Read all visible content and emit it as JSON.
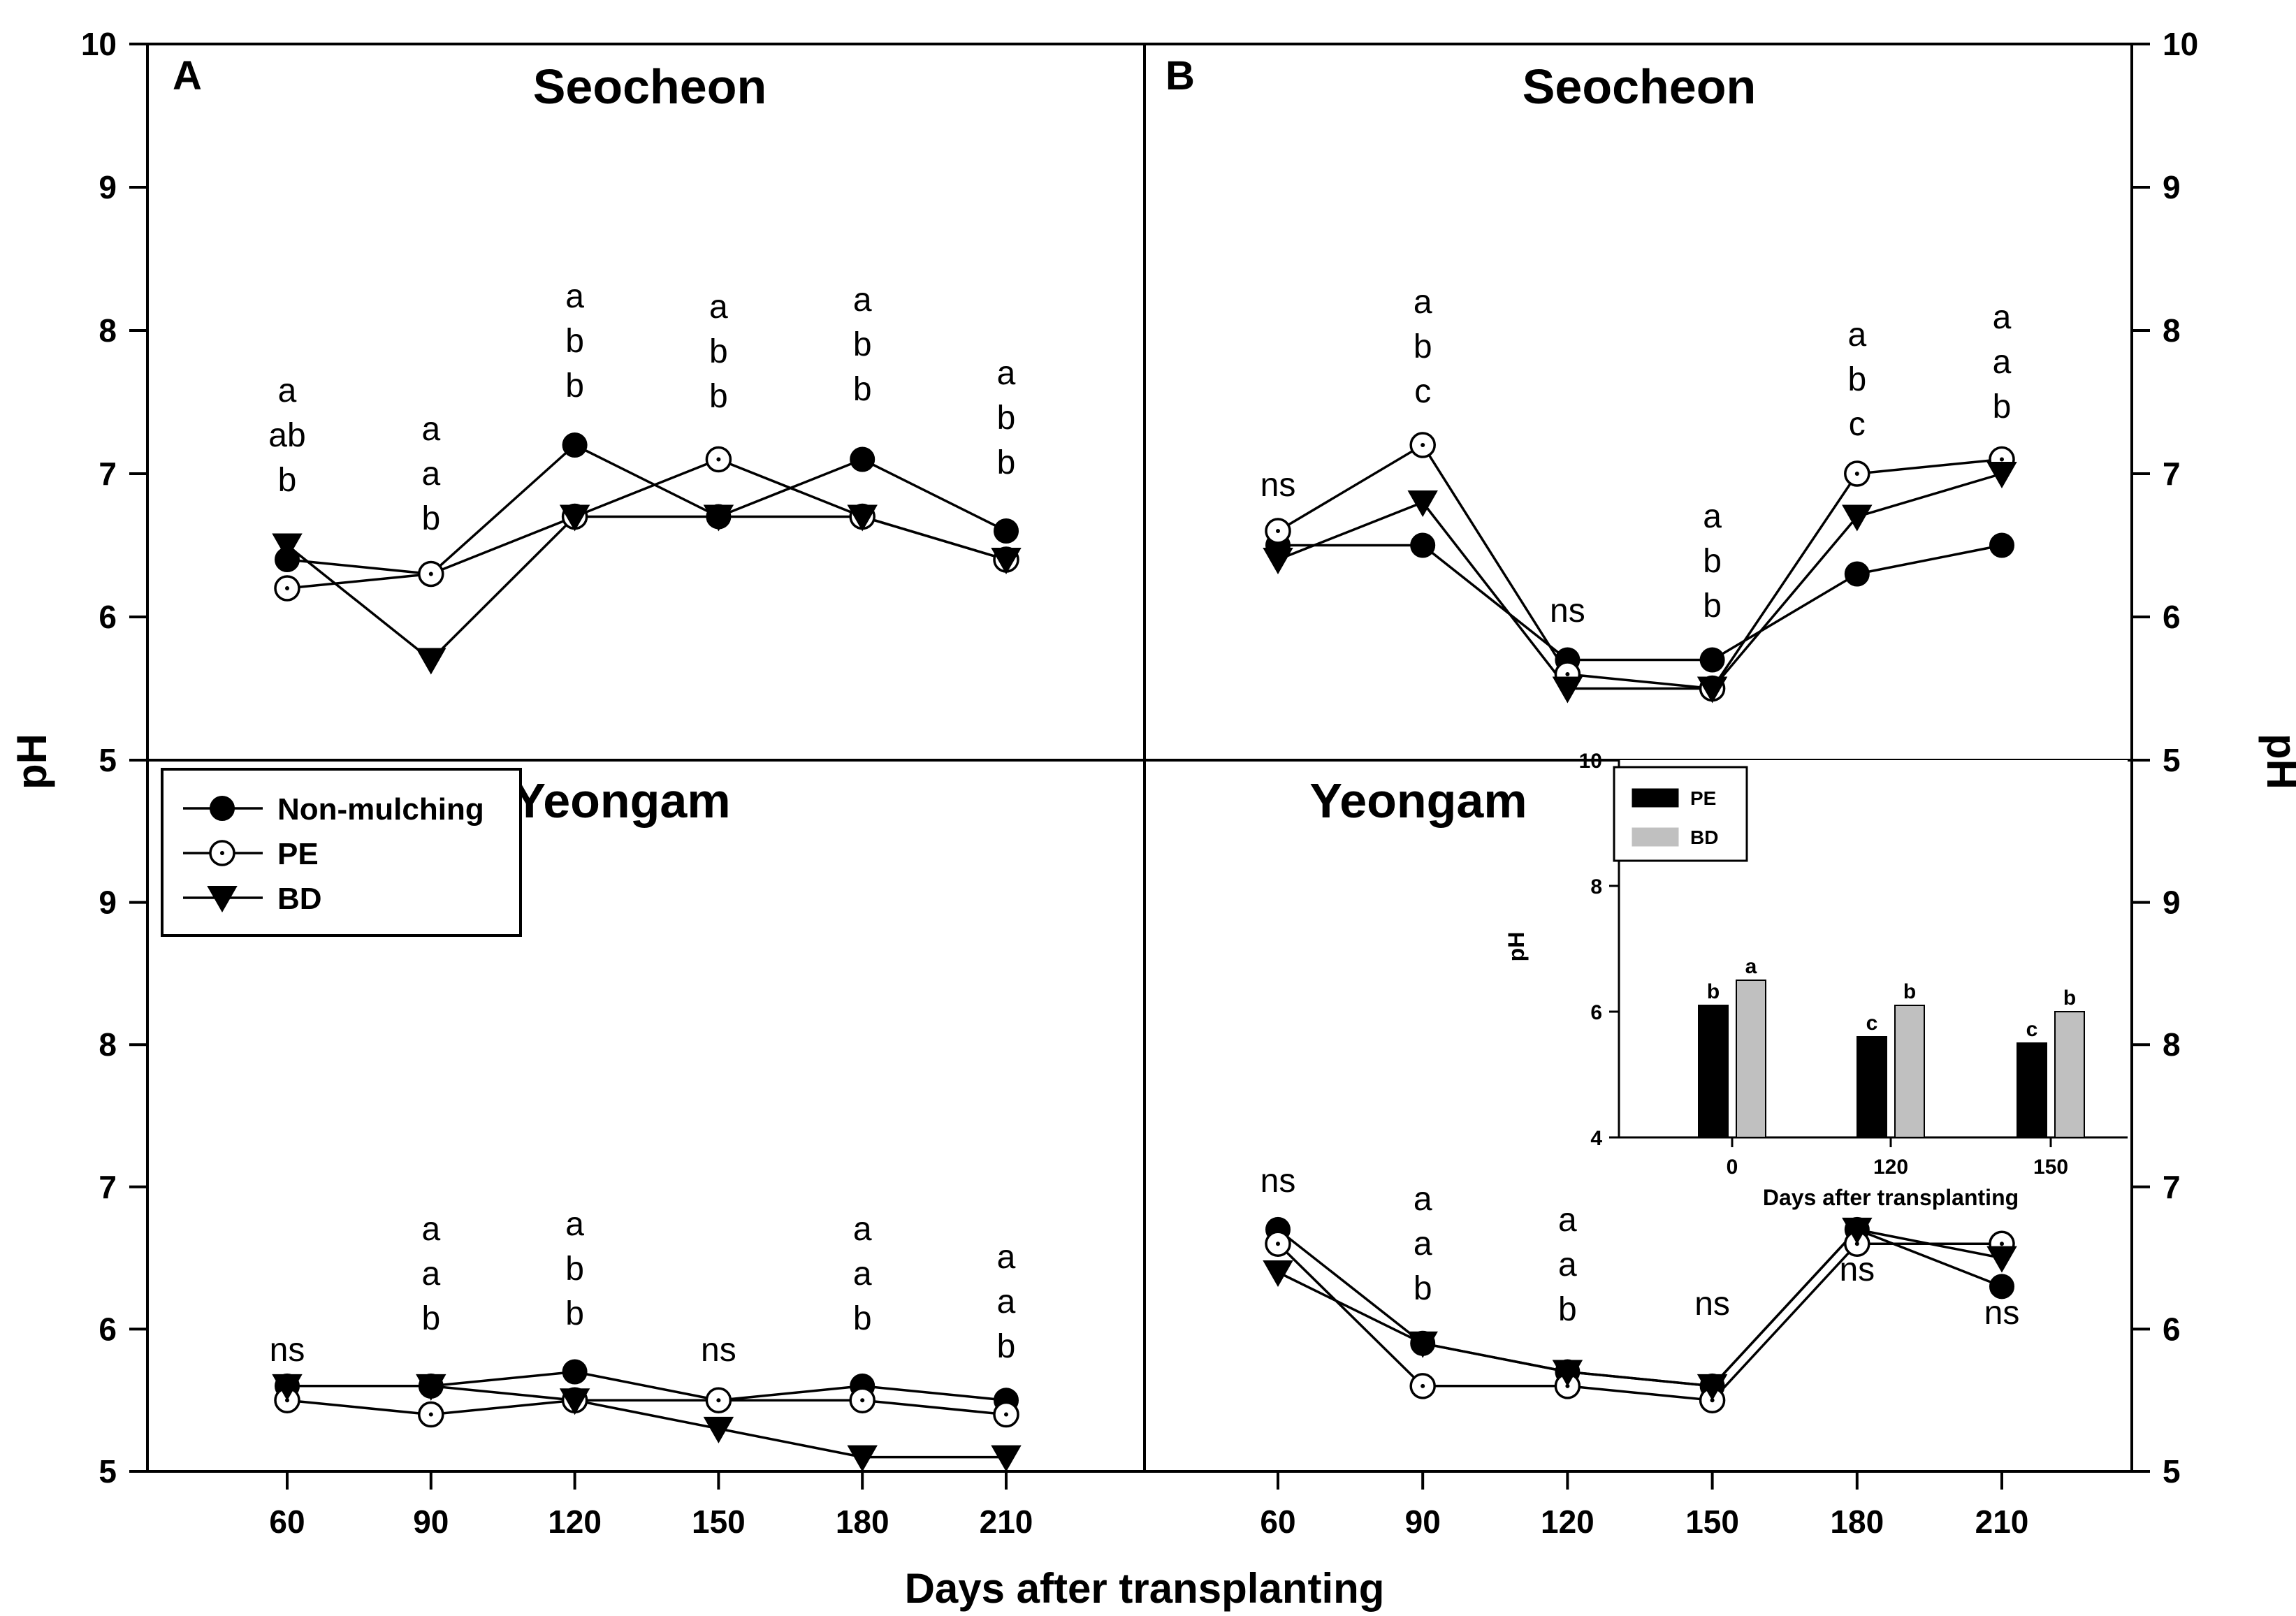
{
  "x_label": "Days after transplanting",
  "y_label": "pH",
  "legend": [
    {
      "name": "Non-mulching",
      "marker": "filled-circle"
    },
    {
      "name": "PE",
      "marker": "open-circle-dot"
    },
    {
      "name": "BD",
      "marker": "filled-triangle-down"
    }
  ],
  "chart_data": [
    {
      "id": "A-top",
      "type": "line",
      "panel_letter": "A",
      "title": "Seocheon",
      "x": [
        60,
        90,
        120,
        150,
        180,
        210
      ],
      "ylim": [
        5,
        10
      ],
      "yticks": [
        5,
        6,
        7,
        8,
        9,
        10
      ],
      "series": [
        {
          "name": "Non-mulching",
          "values": [
            6.4,
            6.3,
            7.2,
            6.7,
            7.1,
            6.6
          ]
        },
        {
          "name": "PE",
          "values": [
            6.2,
            6.3,
            6.7,
            7.1,
            6.7,
            6.4
          ]
        },
        {
          "name": "BD",
          "values": [
            6.5,
            5.7,
            6.7,
            6.7,
            6.7,
            6.4
          ]
        }
      ],
      "annotations": [
        {
          "x": 60,
          "letters": [
            "a",
            "ab",
            "b"
          ]
        },
        {
          "x": 90,
          "letters": [
            "a",
            "a",
            "b"
          ]
        },
        {
          "x": 120,
          "letters": [
            "a",
            "b",
            "b"
          ]
        },
        {
          "x": 150,
          "letters": [
            "a",
            "b",
            "b"
          ]
        },
        {
          "x": 180,
          "letters": [
            "a",
            "b",
            "b"
          ]
        },
        {
          "x": 210,
          "letters": [
            "a",
            "b",
            "b"
          ]
        }
      ]
    },
    {
      "id": "A-bottom",
      "type": "line",
      "title": "Yeongam",
      "x": [
        60,
        90,
        120,
        150,
        180,
        210
      ],
      "ylim": [
        5,
        10
      ],
      "yticks": [
        5,
        6,
        7,
        8,
        9
      ],
      "series": [
        {
          "name": "Non-mulching",
          "values": [
            5.6,
            5.6,
            5.7,
            5.5,
            5.6,
            5.5
          ]
        },
        {
          "name": "PE",
          "values": [
            5.5,
            5.4,
            5.5,
            5.5,
            5.5,
            5.4
          ]
        },
        {
          "name": "BD",
          "values": [
            5.6,
            5.6,
            5.5,
            5.3,
            5.1,
            5.1
          ]
        }
      ],
      "annotations": [
        {
          "x": 60,
          "letters": [
            "ns"
          ]
        },
        {
          "x": 90,
          "letters": [
            "a",
            "a",
            "b"
          ]
        },
        {
          "x": 120,
          "letters": [
            "a",
            "b",
            "b"
          ]
        },
        {
          "x": 150,
          "letters": [
            "ns"
          ]
        },
        {
          "x": 180,
          "letters": [
            "a",
            "a",
            "b"
          ]
        },
        {
          "x": 210,
          "letters": [
            "a",
            "a",
            "b"
          ]
        }
      ]
    },
    {
      "id": "B-top",
      "type": "line",
      "panel_letter": "B",
      "title": "Seocheon",
      "x": [
        60,
        90,
        120,
        150,
        180,
        210
      ],
      "ylim": [
        5,
        10
      ],
      "yticks": [
        5,
        6,
        7,
        8,
        9,
        10
      ],
      "series": [
        {
          "name": "Non-mulching",
          "values": [
            6.5,
            6.5,
            5.7,
            5.7,
            6.3,
            6.5
          ]
        },
        {
          "name": "PE",
          "values": [
            6.6,
            7.2,
            5.6,
            5.5,
            7.0,
            7.1
          ]
        },
        {
          "name": "BD",
          "values": [
            6.4,
            6.8,
            5.5,
            5.5,
            6.7,
            7.0
          ]
        }
      ],
      "annotations": [
        {
          "x": 60,
          "letters": [
            "ns"
          ]
        },
        {
          "x": 90,
          "letters": [
            "a",
            "b",
            "c"
          ]
        },
        {
          "x": 120,
          "letters": [
            "ns"
          ]
        },
        {
          "x": 150,
          "letters": [
            "a",
            "b",
            "b"
          ]
        },
        {
          "x": 180,
          "letters": [
            "a",
            "b",
            "c"
          ]
        },
        {
          "x": 210,
          "letters": [
            "a",
            "a",
            "b"
          ]
        }
      ]
    },
    {
      "id": "B-bottom",
      "type": "line",
      "title": "Yeongam",
      "x": [
        60,
        90,
        120,
        150,
        180,
        210
      ],
      "ylim": [
        5,
        10
      ],
      "yticks": [
        5,
        6,
        7,
        8,
        9
      ],
      "series": [
        {
          "name": "Non-mulching",
          "values": [
            6.7,
            5.9,
            5.7,
            5.6,
            6.7,
            6.3
          ]
        },
        {
          "name": "PE",
          "values": [
            6.6,
            5.6,
            5.6,
            5.5,
            6.6,
            6.6
          ]
        },
        {
          "name": "BD",
          "values": [
            6.4,
            5.9,
            5.7,
            5.6,
            6.7,
            6.5
          ]
        }
      ],
      "annotations": [
        {
          "x": 60,
          "letters": [
            "ns"
          ]
        },
        {
          "x": 90,
          "letters": [
            "a",
            "a",
            "b"
          ]
        },
        {
          "x": 120,
          "letters": [
            "a",
            "a",
            "b"
          ]
        },
        {
          "x": 150,
          "letters": [
            "ns"
          ]
        },
        {
          "x": 180,
          "letters": [
            "ns"
          ],
          "below": true
        },
        {
          "x": 210,
          "letters": [
            "ns"
          ],
          "below": true
        }
      ]
    },
    {
      "id": "inset",
      "type": "bar",
      "categories": [
        "0",
        "120",
        "150"
      ],
      "xlabel": "Days after transplanting",
      "ylabel": "pH",
      "ylim": [
        4,
        10
      ],
      "yticks": [
        4,
        6,
        8,
        10
      ],
      "series": [
        {
          "name": "PE",
          "color": "#000000",
          "values": [
            6.1,
            5.6,
            5.5
          ],
          "letters": [
            "b",
            "c",
            "c"
          ]
        },
        {
          "name": "BD",
          "color": "#c0c0c0",
          "values": [
            6.5,
            6.1,
            6.0
          ],
          "letters": [
            "a",
            "b",
            "b"
          ]
        }
      ]
    }
  ]
}
